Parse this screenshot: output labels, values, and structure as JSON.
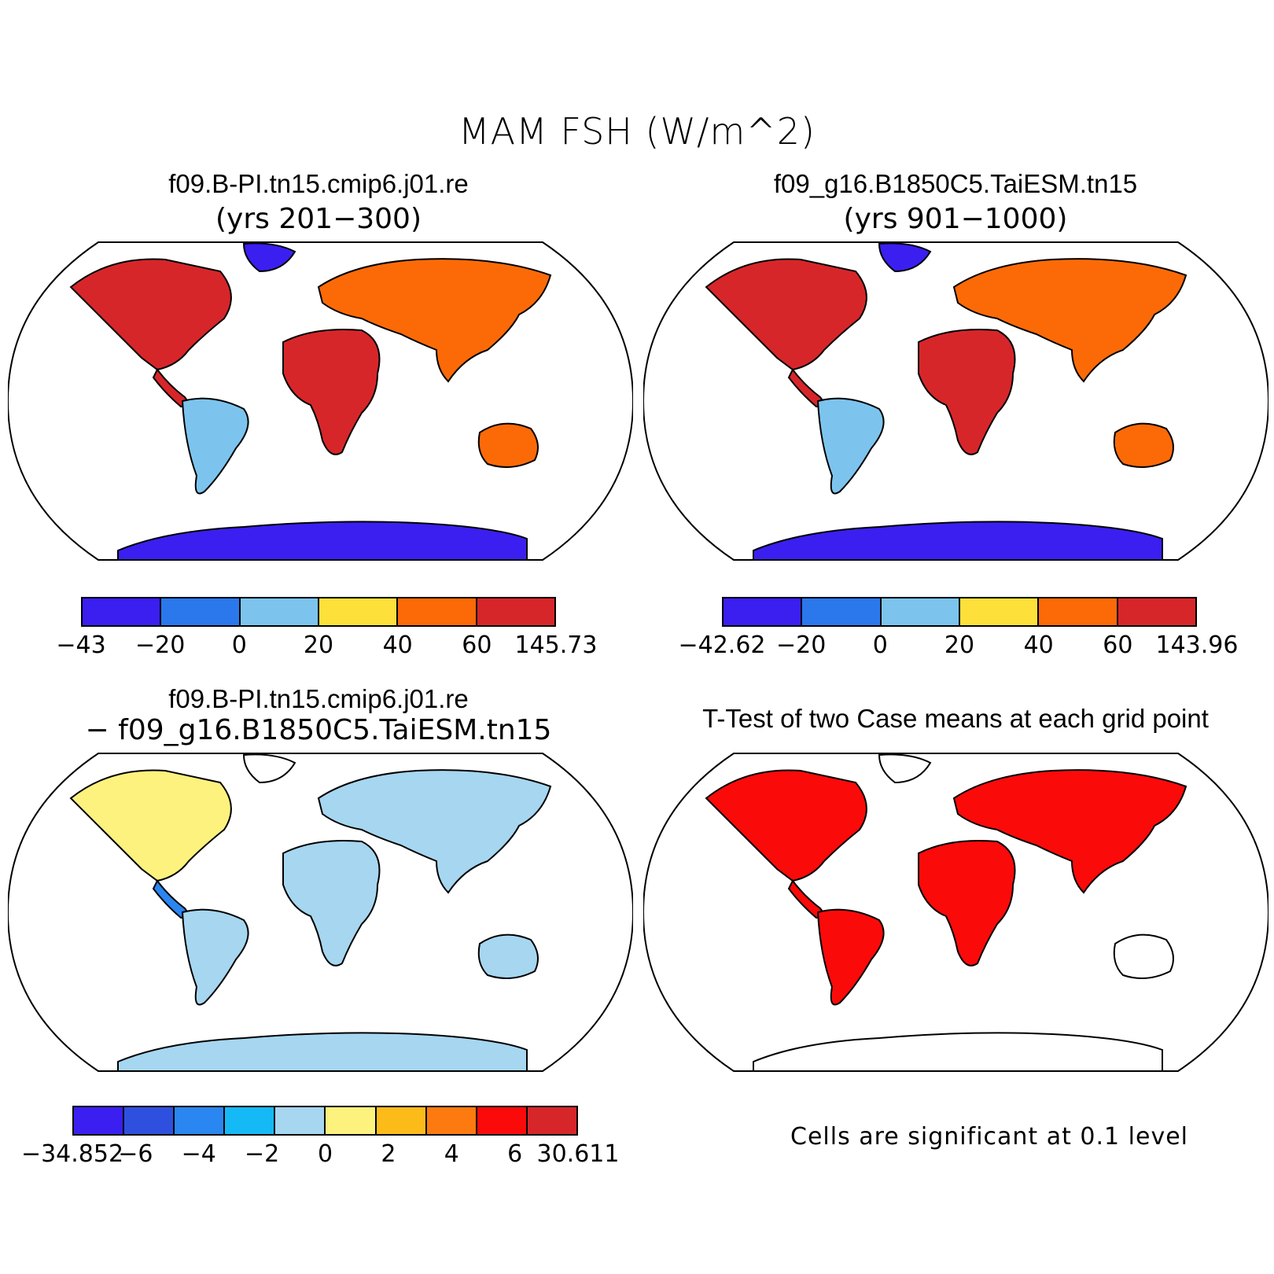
{
  "title": "MAM FSH (W/m^2)",
  "panels": [
    {
      "case": "f09.B-PI.tn15.cmip6.j01.re",
      "years": "(yrs 201−300)",
      "colorbar": {
        "labels": [
          "−43",
          "−20",
          "0",
          "20",
          "40",
          "60",
          "145.73"
        ],
        "colors": [
          "#3a1ff0",
          "#2a78ec",
          "#7cc4ee",
          "#fde03a",
          "#fc6a08",
          "#d7262a"
        ]
      }
    },
    {
      "case": "f09_g16.B1850C5.TaiESM.tn15",
      "years": "(yrs 901−1000)",
      "colorbar": {
        "labels": [
          "−42.62",
          "−20",
          "0",
          "20",
          "40",
          "60",
          "143.96"
        ],
        "colors": [
          "#3a1ff0",
          "#2a78ec",
          "#7cc4ee",
          "#fde03a",
          "#fc6a08",
          "#d7262a"
        ]
      }
    },
    {
      "case": "f09.B-PI.tn15.cmip6.j01.re",
      "minus": "− f09_g16.B1850C5.TaiESM.tn15",
      "colorbar": {
        "labels": [
          "−34.852",
          "−6",
          "−4",
          "−2",
          "0",
          "2",
          "4",
          "6",
          "30.611"
        ],
        "colors": [
          "#3a1ff0",
          "#2f50de",
          "#2a86f0",
          "#14b9f5",
          "#a6d6f0",
          "#fdf27e",
          "#fdbb1a",
          "#fc7a10",
          "#fb0a0a",
          "#d7262a"
        ]
      }
    },
    {
      "title": "T-Test of two Case means at each grid point",
      "note": "Cells are significant at 0.1 level",
      "color": "#fb0a0a"
    }
  ]
}
